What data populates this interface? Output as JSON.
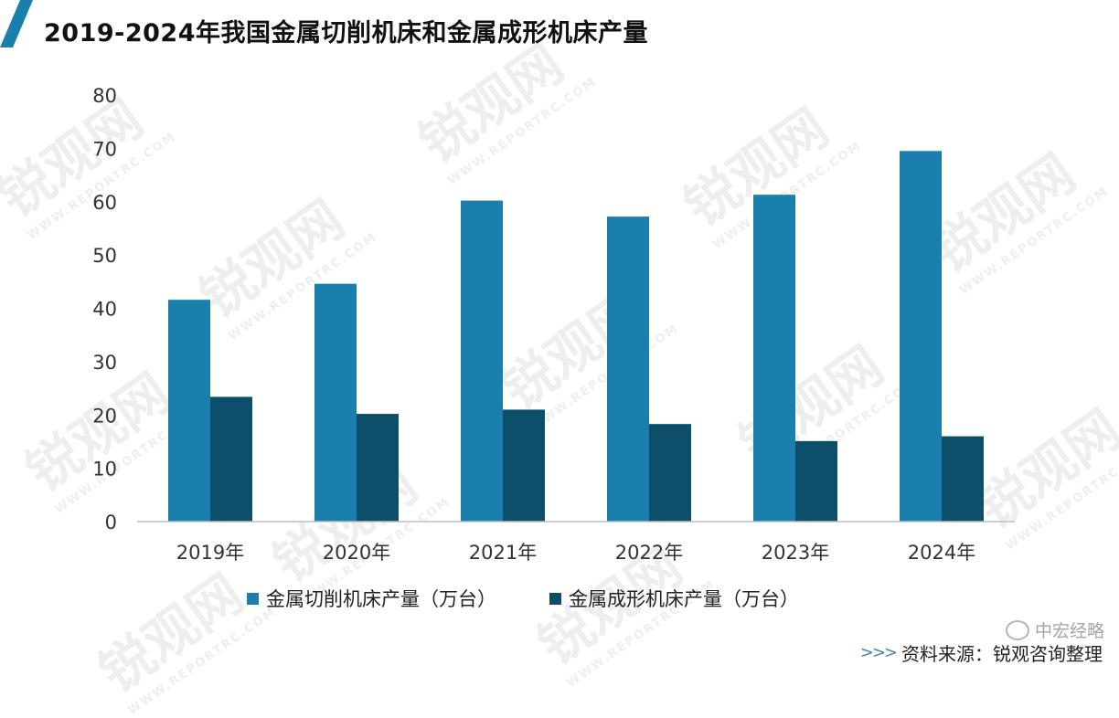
{
  "title": "2019-2024年我国金属切削机床和金属成形机床产量",
  "colors": {
    "series1": "#1a7fad",
    "series2": "#0d4f6b",
    "accent": "#1a7fad",
    "axis": "#bfbfbf"
  },
  "watermark": {
    "brand": "锐观网",
    "site": "WWW.REPORTRC.COM"
  },
  "wechat_label": "中宏经略",
  "source": {
    "arrows": ">>>",
    "text": "资料来源：锐观咨询整理"
  },
  "chart_data": {
    "type": "bar",
    "title": "2019-2024年我国金属切削机床和金属成形机床产量",
    "xlabel": "",
    "ylabel": "",
    "categories": [
      "2019年",
      "2020年",
      "2021年",
      "2022年",
      "2023年",
      "2024年"
    ],
    "series": [
      {
        "name": "金属切削机床产量（万台）",
        "values": [
          41.6,
          44.6,
          60.2,
          57.2,
          61.3,
          69.5
        ]
      },
      {
        "name": "金属成形机床产量（万台）",
        "values": [
          23.4,
          20.2,
          21.0,
          18.3,
          15.1,
          16.0
        ]
      }
    ],
    "ylim": [
      0,
      80
    ],
    "yticks": [
      "0",
      "10",
      "20",
      "30",
      "40",
      "50",
      "60",
      "70",
      "80"
    ],
    "grid": false,
    "legend": "bottom"
  }
}
